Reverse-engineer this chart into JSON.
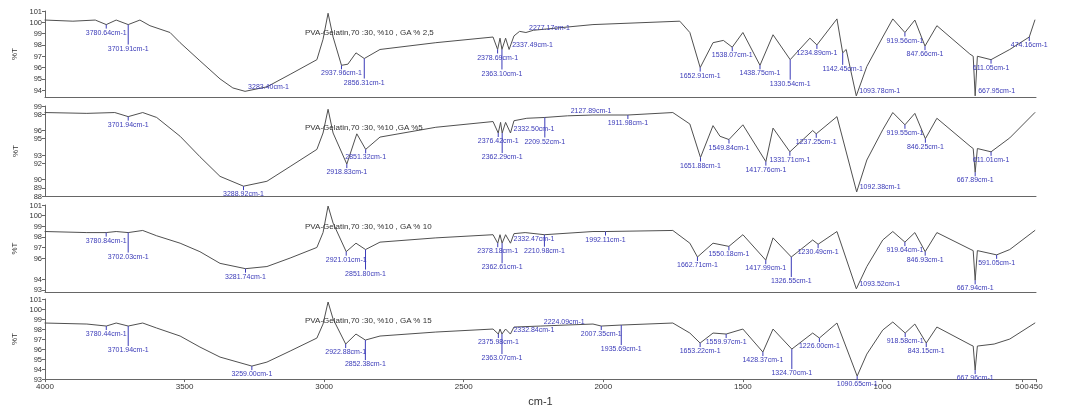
{
  "chart_data": [
    {
      "type": "line",
      "title": "PVA-Gelatin,70 :30, %10 , GA % 2,5",
      "ylabel": "%T",
      "color": "#505050",
      "xlim": [
        4000,
        450
      ],
      "xticks": [
        4000,
        3500,
        3000,
        2500,
        2000,
        1500,
        1000,
        500,
        450
      ],
      "ylim": [
        93.4,
        101
      ],
      "yticks": [
        94,
        95,
        96,
        97,
        98,
        99,
        100,
        101
      ],
      "tick_labels": "y",
      "x": [
        4000,
        3900,
        3820,
        3780.64,
        3745,
        3701.91,
        3660,
        3624,
        3552,
        3516,
        3445,
        3373,
        3327,
        3283.4,
        3205,
        3122,
        3026,
        3004,
        2986,
        2968,
        2937.96,
        2915,
        2886,
        2856.31,
        2800,
        2600,
        2395,
        2378.69,
        2370,
        2363.1,
        2350,
        2337.49,
        2320,
        2300,
        2277.17,
        2250,
        2037,
        1726,
        1690,
        1652.91,
        1607,
        1570,
        1538.07,
        1500,
        1438.75,
        1392,
        1330.54,
        1260,
        1234.89,
        1163,
        1142.45,
        1130,
        1093.78,
        1056,
        999,
        963,
        919.56,
        884,
        847.66,
        805,
        687,
        675,
        667.95,
        660,
        611.05,
        544,
        474.16,
        454
      ],
      "values": [
        100.2,
        100.1,
        100.2,
        99.8,
        100.2,
        99.8,
        100.2,
        99.7,
        99.1,
        98.2,
        96.6,
        95.0,
        94.2,
        93.9,
        94.3,
        95.4,
        96.7,
        98.5,
        100.8,
        98.7,
        96.2,
        96.3,
        97.3,
        96.8,
        97.6,
        98.2,
        98.7,
        97.6,
        98.6,
        97.6,
        98.6,
        97.6,
        98.8,
        99.2,
        99.1,
        99.3,
        99.8,
        100.1,
        99.1,
        96.0,
        98.2,
        98.4,
        97.8,
        99.1,
        96.2,
        98.9,
        96.7,
        98.6,
        98.0,
        100.3,
        97.3,
        97.6,
        93.5,
        96.1,
        98.7,
        100.3,
        99.1,
        100.2,
        97.9,
        99.7,
        97.2,
        97.0,
        93.5,
        97.0,
        96.7,
        97.6,
        98.7,
        100.2
      ],
      "annotations": [
        {
          "text": "3780.64cm-1",
          "x": 3780.64,
          "y": 99.8
        },
        {
          "text": "3701.91cm-1",
          "x": 3701.91,
          "y": 99.8
        },
        {
          "text": "3283.40cm-1",
          "x": 3283.4,
          "y": 93.9
        },
        {
          "text": "2937.96cm-1",
          "x": 2937.96,
          "y": 96.2
        },
        {
          "text": "2856.31cm-1",
          "x": 2856.31,
          "y": 96.8
        },
        {
          "text": "2378.69cm-1",
          "x": 2378.69,
          "y": 97.6
        },
        {
          "text": "2363.10cm-1",
          "x": 2363.1,
          "y": 97.6
        },
        {
          "text": "2337.49cm-1",
          "x": 2337.49,
          "y": 97.6
        },
        {
          "text": "2277.17cm-1",
          "x": 2277.17,
          "y": 99.1
        },
        {
          "text": "1652.91cm-1",
          "x": 1652.91,
          "y": 96.0
        },
        {
          "text": "1538.07cm-1",
          "x": 1538.07,
          "y": 97.8
        },
        {
          "text": "1438.75cm-1",
          "x": 1438.75,
          "y": 96.2
        },
        {
          "text": "1330.54cm-1",
          "x": 1330.54,
          "y": 96.7
        },
        {
          "text": "1234.89cm-1",
          "x": 1234.89,
          "y": 98.0
        },
        {
          "text": "1142.45cm-1",
          "x": 1142.45,
          "y": 97.3
        },
        {
          "text": "1093.78cm-1",
          "x": 1093.78,
          "y": 93.5
        },
        {
          "text": "919.56cm-1",
          "x": 919.56,
          "y": 99.1
        },
        {
          "text": "847.66cm-1",
          "x": 847.66,
          "y": 97.9
        },
        {
          "text": "667.95cm-1",
          "x": 667.95,
          "y": 93.5
        },
        {
          "text": "611.05cm-1",
          "x": 611.05,
          "y": 96.7
        },
        {
          "text": "474.16cm-1",
          "x": 474.16,
          "y": 98.7
        }
      ]
    },
    {
      "type": "line",
      "title": "PVA-Gelatin,70 :30, %10 ,GA %5",
      "ylabel": "%T",
      "color": "#505050",
      "xlim": [
        4000,
        450
      ],
      "xticks": [
        4000,
        3500,
        3000,
        2500,
        2000,
        1500,
        1000,
        500,
        450
      ],
      "ylim": [
        88,
        99
      ],
      "yticks": [
        88,
        89,
        90,
        92,
        93,
        95,
        96,
        98,
        99
      ],
      "tick_labels": "y",
      "x": [
        4000,
        3850,
        3750,
        3701.94,
        3650,
        3600,
        3516,
        3445,
        3373,
        3288.92,
        3205,
        3122,
        3026,
        3004,
        2986,
        2968,
        2918.83,
        2883,
        2851.32,
        2800,
        2600,
        2395,
        2376.42,
        2368,
        2362.29,
        2350,
        2332.5,
        2320,
        2274,
        2209.52,
        2127.89,
        2037,
        1911.98,
        1751,
        1690,
        1651.88,
        1607,
        1582,
        1549.84,
        1500,
        1417.76,
        1392,
        1331.71,
        1250,
        1237.25,
        1163,
        1092.38,
        1056,
        999,
        963,
        919.55,
        884,
        846.25,
        805,
        683,
        675,
        667.89,
        660,
        611.01,
        544,
        454
      ],
      "values": [
        98.2,
        98.1,
        98.2,
        97.7,
        98.2,
        97.6,
        95.3,
        92.8,
        90.4,
        89.2,
        89.8,
        91.6,
        93.7,
        95.7,
        98.6,
        95.7,
        91.9,
        95.6,
        93.7,
        95.2,
        96.4,
        97.1,
        95.7,
        97.0,
        95.7,
        97.0,
        95.7,
        97.2,
        97.5,
        97.6,
        97.8,
        97.9,
        97.9,
        98.2,
        96.8,
        92.7,
        96.6,
        95.3,
        94.9,
        96.7,
        92.2,
        96.3,
        93.4,
        96.0,
        95.6,
        97.7,
        88.5,
        92.4,
        96.1,
        98.2,
        96.7,
        98.1,
        95.0,
        97.5,
        94.0,
        93.8,
        90.9,
        93.8,
        93.4,
        95.1,
        98.2
      ],
      "annotations": [
        {
          "text": "3701.94cm-1",
          "x": 3701.94,
          "y": 97.7
        },
        {
          "text": "3288.92cm-1",
          "x": 3288.92,
          "y": 89.2
        },
        {
          "text": "2918.83cm-1",
          "x": 2918.83,
          "y": 91.9
        },
        {
          "text": "2851.32cm-1",
          "x": 2851.32,
          "y": 93.7
        },
        {
          "text": "2376.42cm-1",
          "x": 2376.42,
          "y": 95.7
        },
        {
          "text": "2362.29cm-1",
          "x": 2362.29,
          "y": 95.7
        },
        {
          "text": "2332.50cm-1",
          "x": 2332.5,
          "y": 95.7
        },
        {
          "text": "2209.52cm-1",
          "x": 2209.52,
          "y": 97.6
        },
        {
          "text": "2127.89cm-1",
          "x": 2127.89,
          "y": 97.8
        },
        {
          "text": "1911.98cm-1",
          "x": 1911.98,
          "y": 97.9
        },
        {
          "text": "1651.88cm-1",
          "x": 1651.88,
          "y": 92.7
        },
        {
          "text": "1549.84cm-1",
          "x": 1549.84,
          "y": 94.9
        },
        {
          "text": "1417.76cm-1",
          "x": 1417.76,
          "y": 92.2
        },
        {
          "text": "1331.71cm-1",
          "x": 1331.71,
          "y": 93.4
        },
        {
          "text": "1237.25cm-1",
          "x": 1237.25,
          "y": 95.6
        },
        {
          "text": "1092.38cm-1",
          "x": 1092.38,
          "y": 88.5
        },
        {
          "text": "919.55cm-1",
          "x": 919.55,
          "y": 96.7
        },
        {
          "text": "846.25cm-1",
          "x": 846.25,
          "y": 95.0
        },
        {
          "text": "667.89cm-1",
          "x": 667.89,
          "y": 90.9
        },
        {
          "text": "611.01cm-1",
          "x": 611.01,
          "y": 93.4
        }
      ]
    },
    {
      "type": "line",
      "title": "PVA-Gelatin,70 :30, %10 , GA % 10",
      "ylabel": "%T",
      "color": "#505050",
      "xlim": [
        4000,
        450
      ],
      "xticks": [
        4000,
        3500,
        3000,
        2500,
        2000,
        1500,
        1000,
        500,
        450
      ],
      "ylim": [
        92.8,
        101
      ],
      "yticks": [
        93,
        94,
        96,
        97,
        98,
        99,
        100,
        101
      ],
      "tick_labels": "y",
      "x": [
        4000,
        3850,
        3780.84,
        3745,
        3702.03,
        3650,
        3600,
        3516,
        3445,
        3373,
        3281.74,
        3205,
        3122,
        3026,
        3004,
        2986,
        2968,
        2921.01,
        2886,
        2851.8,
        2800,
        2600,
        2395,
        2378.18,
        2370,
        2362.61,
        2350,
        2332.47,
        2320,
        2280,
        2210.98,
        2037,
        1992.11,
        1751,
        1690,
        1662.71,
        1607,
        1550.18,
        1500,
        1417.99,
        1392,
        1326.55,
        1250,
        1230.49,
        1163,
        1093.52,
        1056,
        999,
        963,
        919.64,
        884,
        846.93,
        805,
        683,
        675,
        667.94,
        660,
        591.05,
        544,
        454
      ],
      "values": [
        98.5,
        98.4,
        98.4,
        98.5,
        98.4,
        98.6,
        98.1,
        97.4,
        96.6,
        95.5,
        95.0,
        95.2,
        96.0,
        97.0,
        98.4,
        100.9,
        99.3,
        96.6,
        97.4,
        96.8,
        97.5,
        97.9,
        98.2,
        97.4,
        98.2,
        97.4,
        98.2,
        97.4,
        98.3,
        98.4,
        98.2,
        98.5,
        98.5,
        98.6,
        97.4,
        96.1,
        97.4,
        97.1,
        98.2,
        95.8,
        97.9,
        96.1,
        97.7,
        97.3,
        98.5,
        93.1,
        95.2,
        97.7,
        98.5,
        97.5,
        98.4,
        96.6,
        98.4,
        96.8,
        96.7,
        93.9,
        96.7,
        96.3,
        96.8,
        98.6
      ],
      "annotations": [
        {
          "text": "3780.84cm-1",
          "x": 3780.84,
          "y": 98.4
        },
        {
          "text": "3702.03cm-1",
          "x": 3702.03,
          "y": 98.4
        },
        {
          "text": "3281.74cm-1",
          "x": 3281.74,
          "y": 95.0
        },
        {
          "text": "2921.01cm-1",
          "x": 2921.01,
          "y": 96.6
        },
        {
          "text": "2851.80cm-1",
          "x": 2851.8,
          "y": 96.8
        },
        {
          "text": "2378.18cm-1",
          "x": 2378.18,
          "y": 97.4
        },
        {
          "text": "2362.61cm-1",
          "x": 2362.61,
          "y": 97.4
        },
        {
          "text": "2332.47cm-1",
          "x": 2332.47,
          "y": 97.4
        },
        {
          "text": "2210.98cm-1",
          "x": 2210.98,
          "y": 98.2
        },
        {
          "text": "1992.11cm-1",
          "x": 1992.11,
          "y": 98.5
        },
        {
          "text": "1662.71cm-1",
          "x": 1662.71,
          "y": 96.1
        },
        {
          "text": "1550.18cm-1",
          "x": 1550.18,
          "y": 97.1
        },
        {
          "text": "1417.99cm-1",
          "x": 1417.99,
          "y": 95.8
        },
        {
          "text": "1326.55cm-1",
          "x": 1326.55,
          "y": 96.1
        },
        {
          "text": "1230.49cm-1",
          "x": 1230.49,
          "y": 97.3
        },
        {
          "text": "1093.52cm-1",
          "x": 1093.52,
          "y": 93.1
        },
        {
          "text": "919.64cm-1",
          "x": 919.64,
          "y": 97.5
        },
        {
          "text": "846.93cm-1",
          "x": 846.93,
          "y": 96.6
        },
        {
          "text": "667.94cm-1",
          "x": 667.94,
          "y": 93.9
        },
        {
          "text": "591.05cm-1",
          "x": 591.05,
          "y": 96.3
        }
      ]
    },
    {
      "type": "line",
      "title": "PVA-Gelatin,70 :30, %10 , GA % 15",
      "xlabel": "cm-1",
      "ylabel": "%T",
      "color": "#505050",
      "xlim": [
        4000,
        450
      ],
      "xticks": [
        4000,
        3500,
        3000,
        2500,
        2000,
        1500,
        1000,
        500,
        450
      ],
      "ylim": [
        93,
        101
      ],
      "yticks": [
        93,
        94,
        95,
        96,
        97,
        98,
        99,
        100,
        101
      ],
      "x": [
        4000,
        3850,
        3780.44,
        3745,
        3701.94,
        3650,
        3600,
        3516,
        3445,
        3373,
        3259.0,
        3205,
        3122,
        3026,
        3004,
        2986,
        2968,
        2922.88,
        2886,
        2852.38,
        2800,
        2600,
        2395,
        2375.98,
        2370,
        2363.07,
        2350,
        2332.84,
        2320,
        2224.09,
        2037,
        2007.35,
        1935.69,
        1751,
        1690,
        1653.22,
        1607,
        1559.97,
        1500,
        1428.37,
        1392,
        1324.7,
        1250,
        1226.0,
        1163,
        1090.65,
        1056,
        999,
        963,
        918.58,
        884,
        843.15,
        805,
        683,
        675,
        667.96,
        660,
        600,
        544,
        454
      ],
      "values": [
        98.6,
        98.5,
        98.3,
        98.6,
        98.3,
        98.6,
        98.1,
        97.3,
        96.2,
        95.2,
        94.3,
        94.7,
        95.8,
        97.1,
        98.5,
        100.7,
        99.0,
        96.5,
        97.5,
        96.9,
        97.3,
        97.7,
        98.0,
        97.5,
        98.0,
        97.5,
        98.0,
        97.5,
        98.2,
        98.3,
        98.5,
        98.3,
        98.4,
        98.6,
        97.6,
        96.6,
        97.6,
        97.5,
        98.0,
        95.7,
        98.0,
        96.0,
        97.6,
        97.1,
        98.6,
        93.3,
        95.5,
        97.9,
        98.7,
        97.6,
        98.5,
        96.6,
        98.2,
        96.4,
        96.3,
        93.9,
        96.3,
        96.5,
        97.0,
        98.6
      ],
      "annotations": [
        {
          "text": "3780.44cm-1",
          "x": 3780.44,
          "y": 98.3
        },
        {
          "text": "3701.94cm-1",
          "x": 3701.94,
          "y": 98.3
        },
        {
          "text": "3259.00cm-1",
          "x": 3259.0,
          "y": 94.3
        },
        {
          "text": "2922.88cm-1",
          "x": 2922.88,
          "y": 96.5
        },
        {
          "text": "2852.38cm-1",
          "x": 2852.38,
          "y": 96.9
        },
        {
          "text": "2375.98cm-1",
          "x": 2375.98,
          "y": 97.5
        },
        {
          "text": "2363.07cm-1",
          "x": 2363.07,
          "y": 97.5
        },
        {
          "text": "2332.84cm-1",
          "x": 2332.84,
          "y": 97.5
        },
        {
          "text": "2224.09cm-1",
          "x": 2224.09,
          "y": 98.3
        },
        {
          "text": "2007.35cm-1",
          "x": 2007.35,
          "y": 98.3
        },
        {
          "text": "1935.69cm-1",
          "x": 1935.69,
          "y": 98.4
        },
        {
          "text": "1653.22cm-1",
          "x": 1653.22,
          "y": 96.6
        },
        {
          "text": "1559.97cm-1",
          "x": 1559.97,
          "y": 97.5
        },
        {
          "text": "1428.37cm-1",
          "x": 1428.37,
          "y": 95.7
        },
        {
          "text": "1324.70cm-1",
          "x": 1324.7,
          "y": 96.0
        },
        {
          "text": "1226.00cm-1",
          "x": 1226.0,
          "y": 97.1
        },
        {
          "text": "1090.65cm-1",
          "x": 1090.65,
          "y": 93.3
        },
        {
          "text": "918.58cm-1",
          "x": 918.58,
          "y": 97.6
        },
        {
          "text": "843.15cm-1",
          "x": 843.15,
          "y": 96.6
        },
        {
          "text": "667.96cm-1",
          "x": 667.96,
          "y": 93.9
        }
      ]
    }
  ]
}
